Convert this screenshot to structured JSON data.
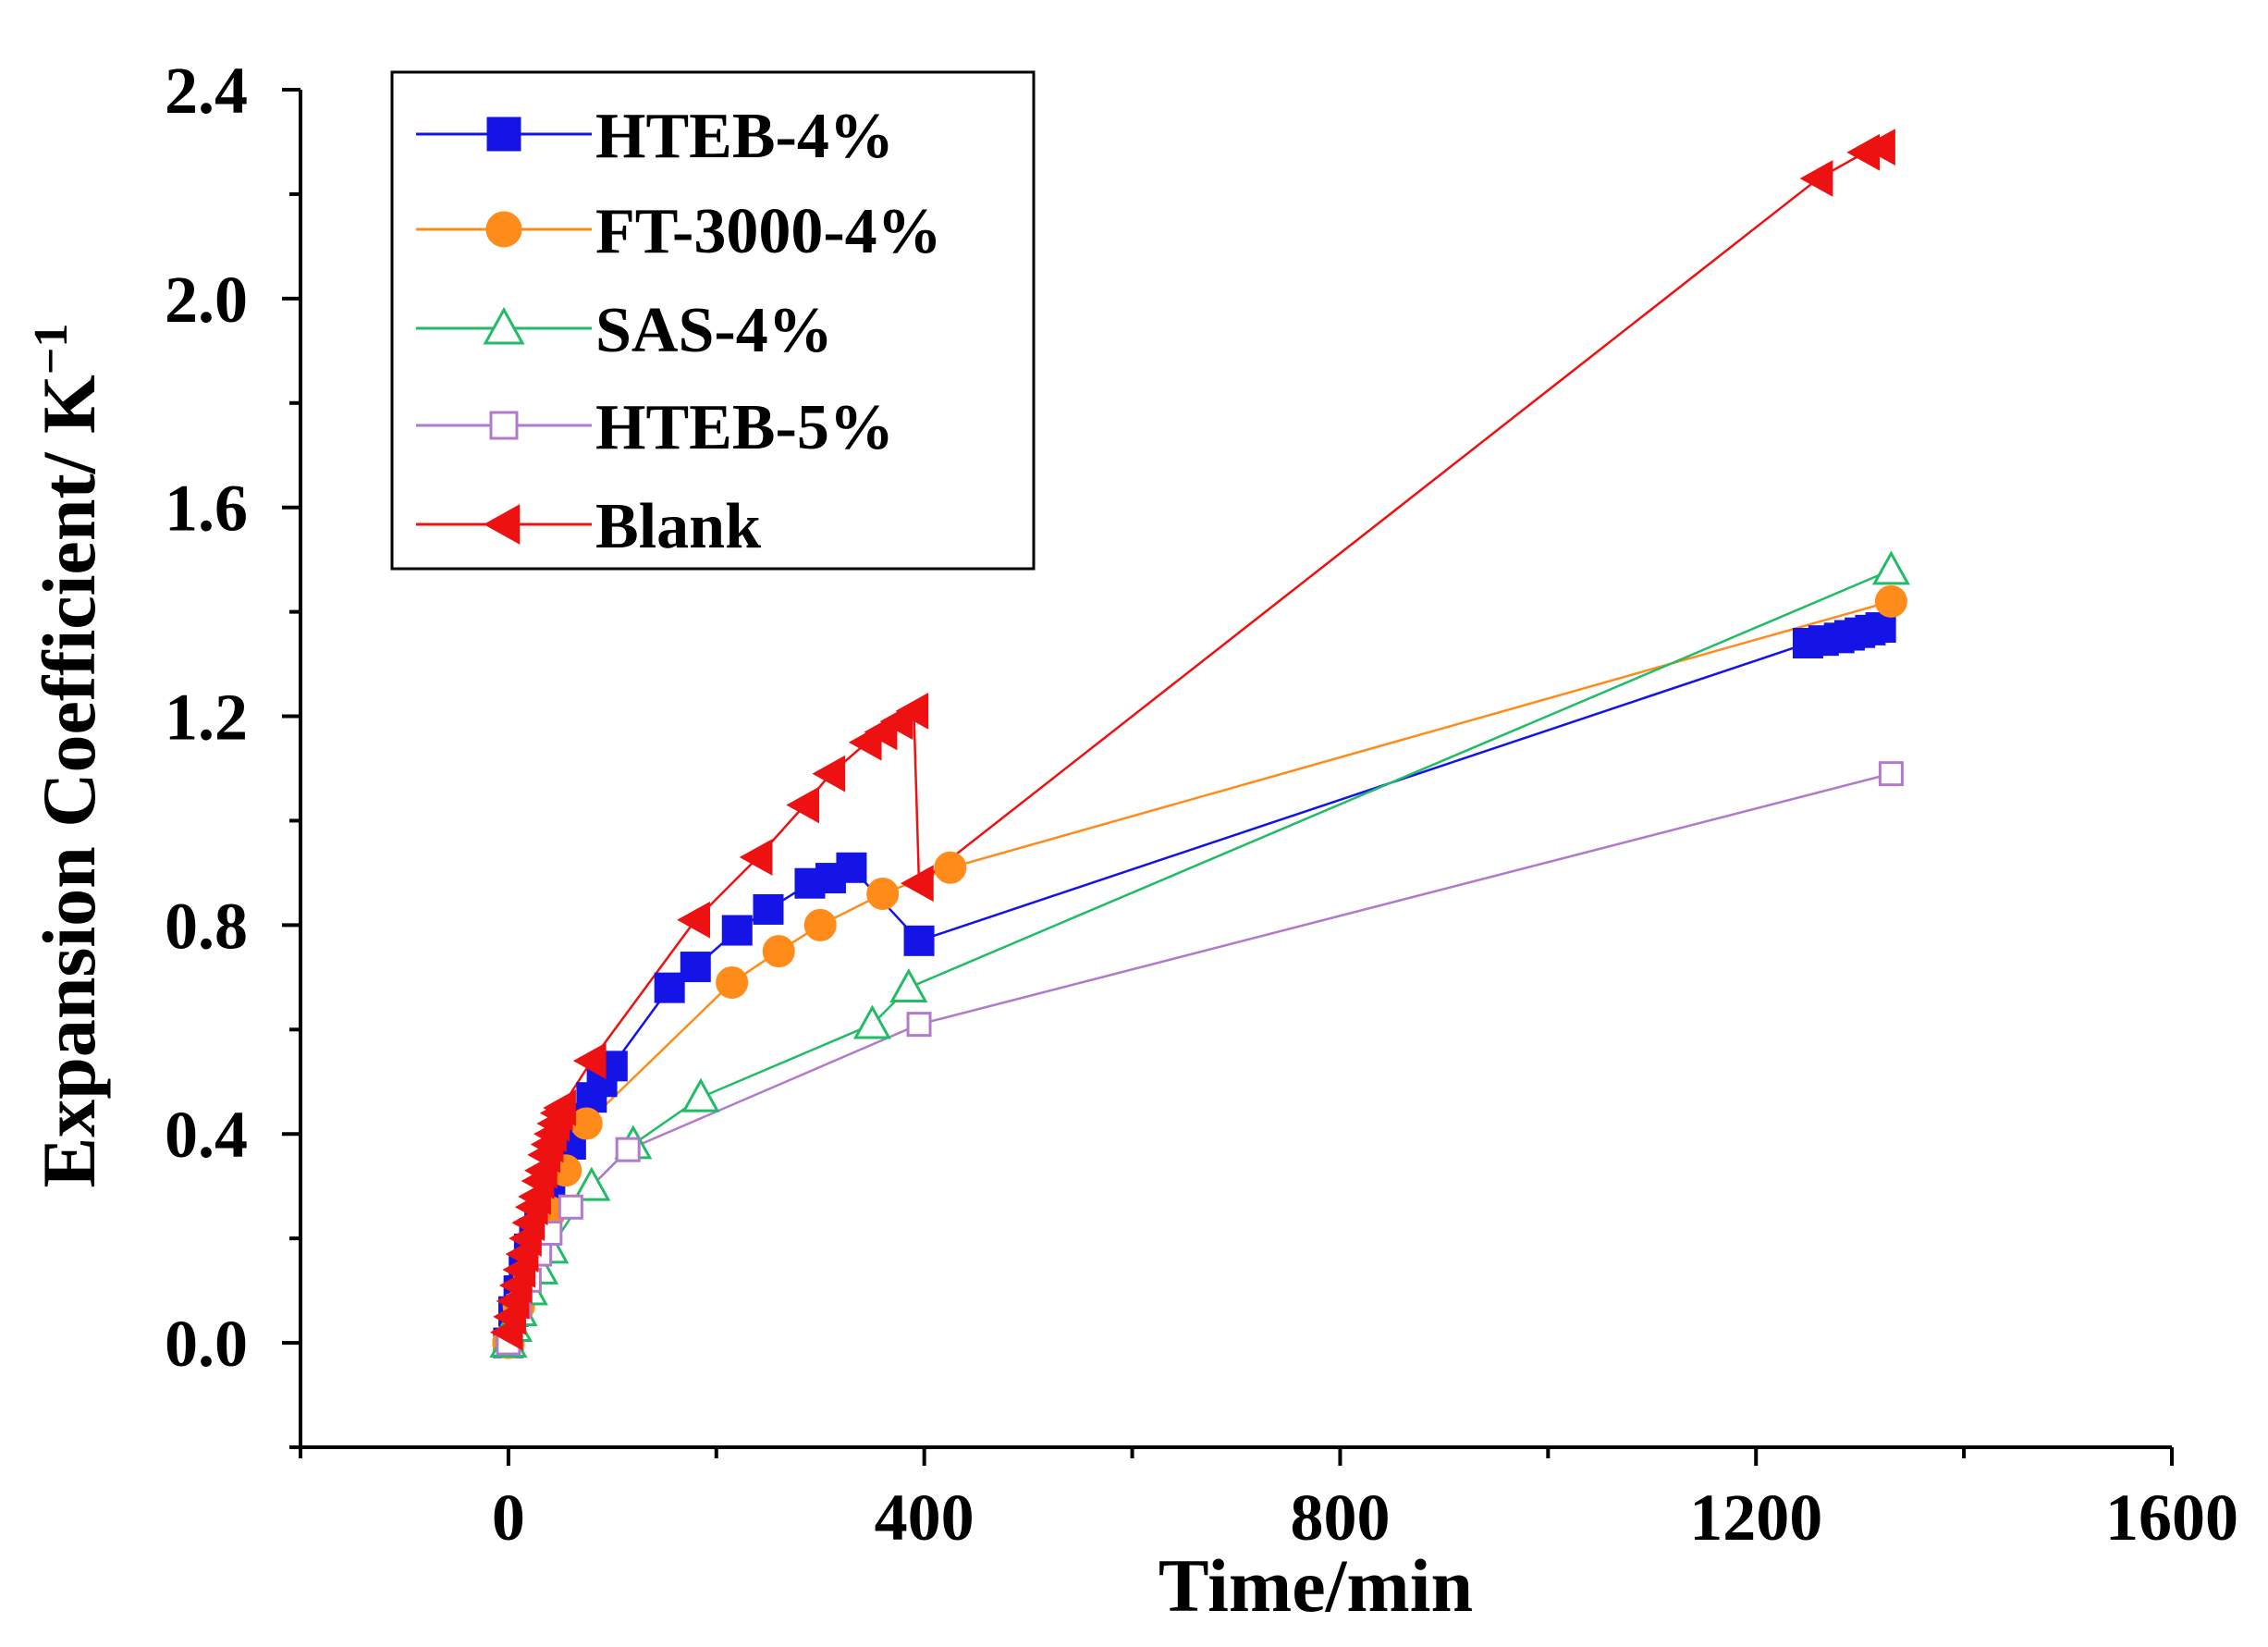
{
  "chart_data": {
    "type": "scatter",
    "title": "",
    "xlabel": "Time/min",
    "ylabel": "Expansion Coefficient/ K",
    "ylabel_superscript": "−1",
    "xlim": [
      -200,
      1600
    ],
    "ylim": [
      -0.2,
      2.4
    ],
    "xticks": [
      0,
      400,
      800,
      1200,
      1600
    ],
    "yticks": [
      0.0,
      0.4,
      0.8,
      1.2,
      1.6,
      2.0,
      2.4
    ],
    "xtick_labels": [
      "0",
      "400",
      "800",
      "1200",
      "1600"
    ],
    "ytick_labels": [
      "0.0",
      "0.4",
      "0.8",
      "1.2",
      "1.6",
      "2.0",
      "2.4"
    ],
    "grid": false,
    "legend_position": "top-left",
    "series": [
      {
        "name": "HTEB-4%",
        "color": "#1414e6",
        "marker": "filled-square",
        "x": [
          0,
          5,
          10,
          15,
          20,
          25,
          30,
          40,
          50,
          60,
          70,
          80,
          90,
          100,
          155,
          180,
          220,
          250,
          290,
          310,
          330,
          395,
          1250,
          1265,
          1280,
          1290,
          1300,
          1310,
          1320
        ],
        "y": [
          0.0,
          0.06,
          0.1,
          0.14,
          0.18,
          0.21,
          0.24,
          0.29,
          0.34,
          0.38,
          0.43,
          0.47,
          0.5,
          0.53,
          0.68,
          0.72,
          0.79,
          0.83,
          0.88,
          0.89,
          0.91,
          0.77,
          1.34,
          1.345,
          1.35,
          1.355,
          1.36,
          1.365,
          1.37
        ]
      },
      {
        "name": "FT-3000-4%",
        "color": "#ff8c1a",
        "marker": "filled-circle",
        "x": [
          0,
          10,
          20,
          30,
          40,
          55,
          75,
          215,
          260,
          300,
          360,
          425,
          1330
        ],
        "y": [
          0.0,
          0.07,
          0.13,
          0.19,
          0.25,
          0.33,
          0.42,
          0.69,
          0.75,
          0.8,
          0.86,
          0.91,
          1.42
        ]
      },
      {
        "name": "SAS-4%",
        "color": "#22bb66",
        "marker": "open-triangle",
        "x": [
          0,
          5,
          10,
          20,
          30,
          40,
          80,
          120,
          185,
          350,
          385,
          1330
        ],
        "y": [
          0.0,
          0.03,
          0.06,
          0.1,
          0.14,
          0.18,
          0.3,
          0.38,
          0.47,
          0.61,
          0.68,
          1.48
        ]
      },
      {
        "name": "HTEB-5%",
        "color": "#b37acc",
        "marker": "open-square",
        "x": [
          0,
          10,
          20,
          30,
          40,
          60,
          115,
          395,
          1330
        ],
        "y": [
          0.0,
          0.07,
          0.12,
          0.17,
          0.21,
          0.26,
          0.37,
          0.61,
          1.09
        ]
      },
      {
        "name": "Blank",
        "color": "#ee1111",
        "marker": "filled-left-triangle",
        "x": [
          0,
          3,
          6,
          9,
          12,
          15,
          18,
          21,
          24,
          27,
          30,
          33,
          36,
          39,
          42,
          45,
          48,
          51,
          80,
          180,
          240,
          285,
          310,
          345,
          360,
          375,
          390,
          395,
          1260,
          1305,
          1320
        ],
        "y": [
          0.02,
          0.05,
          0.08,
          0.11,
          0.14,
          0.17,
          0.2,
          0.23,
          0.26,
          0.28,
          0.31,
          0.33,
          0.36,
          0.38,
          0.4,
          0.42,
          0.44,
          0.45,
          0.54,
          0.81,
          0.93,
          1.03,
          1.09,
          1.15,
          1.17,
          1.19,
          1.21,
          0.88,
          2.23,
          2.28,
          2.29
        ]
      }
    ]
  }
}
